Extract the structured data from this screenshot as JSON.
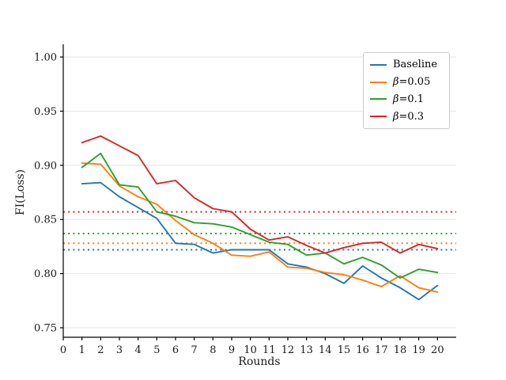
{
  "figure": {
    "background": "#ffffff"
  },
  "chart_data": {
    "type": "line",
    "title": "",
    "xlabel": "Rounds",
    "ylabel": "FI(Loss)",
    "x": [
      1,
      2,
      3,
      4,
      5,
      6,
      7,
      8,
      9,
      10,
      11,
      12,
      13,
      14,
      15,
      16,
      17,
      18,
      19,
      20
    ],
    "xticks": [
      0,
      1,
      2,
      3,
      4,
      5,
      6,
      7,
      8,
      9,
      10,
      11,
      12,
      13,
      14,
      15,
      16,
      17,
      18,
      19,
      20
    ],
    "yticks": [
      0.75,
      0.8,
      0.85,
      0.9,
      0.95,
      1.0
    ],
    "xlim": [
      0,
      21
    ],
    "ylim": [
      0.741,
      1.013
    ],
    "grid": "horizontal",
    "legend_position": "upper right",
    "series": [
      {
        "name": "Baseline",
        "color": "#1f77b4",
        "style": "solid",
        "values": [
          0.883,
          0.884,
          0.871,
          0.861,
          0.851,
          0.828,
          0.827,
          0.819,
          0.822,
          0.822,
          0.822,
          0.809,
          0.806,
          0.8,
          0.791,
          0.807,
          0.796,
          0.787,
          0.776,
          0.789
        ]
      },
      {
        "name": "β=0.05",
        "color": "#ff7f0e",
        "style": "solid",
        "values": [
          0.902,
          0.901,
          0.881,
          0.871,
          0.864,
          0.849,
          0.836,
          0.828,
          0.817,
          0.816,
          0.82,
          0.806,
          0.805,
          0.801,
          0.799,
          0.794,
          0.788,
          0.798,
          0.787,
          0.783
        ]
      },
      {
        "name": "β=0.1",
        "color": "#2ca02c",
        "style": "solid",
        "values": [
          0.898,
          0.911,
          0.882,
          0.88,
          0.857,
          0.853,
          0.847,
          0.846,
          0.843,
          0.836,
          0.829,
          0.827,
          0.817,
          0.819,
          0.809,
          0.815,
          0.808,
          0.796,
          0.804,
          0.801
        ]
      },
      {
        "name": "β=0.3",
        "color": "#d62728",
        "style": "solid",
        "values": [
          0.921,
          0.927,
          0.918,
          0.909,
          0.883,
          0.886,
          0.87,
          0.86,
          0.857,
          0.841,
          0.831,
          0.834,
          0.826,
          0.819,
          0.824,
          0.828,
          0.829,
          0.819,
          0.827,
          0.823
        ]
      }
    ],
    "reference_lines": [
      {
        "series": "Baseline",
        "color": "#1f77b4",
        "style": "dotted",
        "value": 0.822
      },
      {
        "series": "β=0.05",
        "color": "#ff7f0e",
        "style": "dotted",
        "value": 0.828
      },
      {
        "series": "β=0.1",
        "color": "#2ca02c",
        "style": "dotted",
        "value": 0.837
      },
      {
        "series": "β=0.3",
        "color": "#d62728",
        "style": "dotted",
        "value": 0.857
      }
    ],
    "colors": {
      "grid": "#e6e6e6",
      "spine": "#000000",
      "tick_label": "#1a1a1a"
    }
  }
}
